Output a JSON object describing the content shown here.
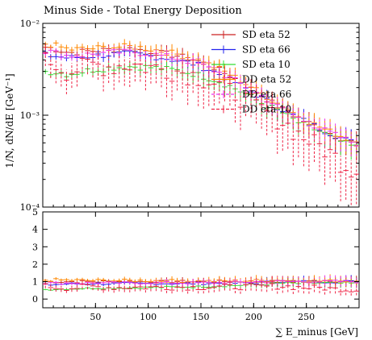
{
  "chart_data": {
    "type": "line",
    "title": "Minus Side - Total Energy Deposition",
    "xlabel": "∑ E_minus [GeV]",
    "ylabel": "1/N, dN/dE [GeV⁻¹]",
    "xlim": [
      0,
      300
    ],
    "ylim": [
      0.0001,
      0.01
    ],
    "ylog": true,
    "x_ticks": [
      "50",
      "100",
      "150",
      "200",
      "250"
    ],
    "y_ticks": [
      "10⁻⁴",
      "10⁻³",
      "10⁻²"
    ],
    "ratio_ylim": [
      -0.5,
      5
    ],
    "ratio_ticks": [
      "0",
      "1",
      "2",
      "3",
      "4",
      "5"
    ],
    "legend_position": "top-right",
    "series": [
      {
        "name": "SD eta 52",
        "color": "#cc2222",
        "style": "solid",
        "x": [
          5,
          25,
          45,
          65,
          85,
          105,
          125,
          145,
          165,
          185,
          205,
          225,
          245,
          265,
          285,
          295
        ],
        "y": [
          0.0055,
          0.0048,
          0.005,
          0.0052,
          0.0053,
          0.0049,
          0.0045,
          0.004,
          0.0032,
          0.0024,
          0.0017,
          0.0012,
          0.0009,
          0.0007,
          0.00055,
          0.0005
        ]
      },
      {
        "name": "SD eta 66",
        "color": "#2222ee",
        "style": "solid",
        "x": [
          5,
          25,
          45,
          65,
          85,
          105,
          125,
          145,
          165,
          185,
          205,
          225,
          245,
          265,
          285,
          295
        ],
        "y": [
          0.0045,
          0.0042,
          0.0044,
          0.0046,
          0.0047,
          0.0044,
          0.004,
          0.0036,
          0.0029,
          0.0022,
          0.0016,
          0.0012,
          0.0009,
          0.0007,
          0.00055,
          0.0005
        ]
      },
      {
        "name": "SD eta 10",
        "color": "#33dd33",
        "style": "solid",
        "x": [
          5,
          25,
          45,
          65,
          85,
          105,
          125,
          145,
          165,
          185,
          205,
          225,
          245,
          265,
          285,
          295
        ],
        "y": [
          0.003,
          0.0028,
          0.0031,
          0.0033,
          0.0034,
          0.0033,
          0.0031,
          0.0028,
          0.0024,
          0.0019,
          0.0014,
          0.0011,
          0.0008,
          0.00065,
          0.0005,
          0.00045
        ]
      },
      {
        "name": "DD eta 52",
        "color": "#ff8800",
        "style": "solid",
        "x": [
          5,
          25,
          45,
          65,
          85,
          105,
          125,
          145,
          165,
          185,
          205,
          225,
          245,
          265,
          285,
          295
        ],
        "y": [
          0.006,
          0.0052,
          0.0053,
          0.0055,
          0.0056,
          0.0052,
          0.0047,
          0.0041,
          0.0033,
          0.0025,
          0.0018,
          0.0013,
          0.00095,
          0.00072,
          0.00058,
          0.0005
        ]
      },
      {
        "name": "DD eta 66",
        "color": "#ee33ee",
        "style": "dashed",
        "x": [
          5,
          25,
          45,
          65,
          85,
          105,
          125,
          145,
          165,
          185,
          205,
          225,
          245,
          265,
          285,
          295
        ],
        "y": [
          0.005,
          0.0044,
          0.0046,
          0.0048,
          0.0049,
          0.0046,
          0.0042,
          0.0037,
          0.003,
          0.0023,
          0.0017,
          0.0012,
          0.0009,
          0.0007,
          0.00056,
          0.0005
        ]
      },
      {
        "name": "DD eta 10",
        "color": "#ee2244",
        "style": "dashed",
        "x": [
          5,
          25,
          45,
          65,
          85,
          105,
          125,
          145,
          165,
          185,
          205,
          225,
          245,
          265,
          285,
          295
        ],
        "y": [
          0.004,
          0.003,
          0.0036,
          0.0034,
          0.0036,
          0.0033,
          0.0031,
          0.0027,
          0.0022,
          0.0017,
          0.0012,
          0.0009,
          0.0006,
          0.00045,
          0.0003,
          0.00025
        ]
      }
    ]
  }
}
